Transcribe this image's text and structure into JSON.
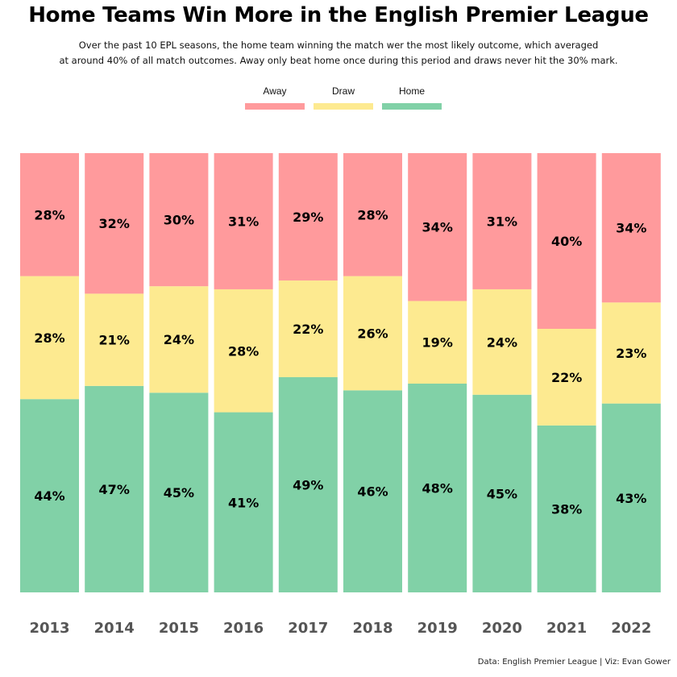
{
  "title": "Home Teams Win More in the English Premier League",
  "subtitle_line1": "Over the past 10 EPL seasons, the home team winning the match wer the most likely outcome, which averaged",
  "subtitle_line2": "at around 40% of all match outcomes. Away only beat home once during this period and draws never hit the 30% mark.",
  "caption": "Data: English Premier League | Viz: Evan Gower",
  "legend": [
    {
      "label": "Away",
      "color": "#ff9a9c"
    },
    {
      "label": "Draw",
      "color": "#fdea90"
    },
    {
      "label": "Home",
      "color": "#81d1a7"
    }
  ],
  "chart_data": {
    "type": "bar",
    "stacked": true,
    "normalized": true,
    "categories": [
      "2013",
      "2014",
      "2015",
      "2016",
      "2017",
      "2018",
      "2019",
      "2020",
      "2021",
      "2022"
    ],
    "series": [
      {
        "name": "Home",
        "color": "#81d1a7",
        "values": [
          44,
          47,
          45,
          41,
          49,
          46,
          48,
          45,
          38,
          43
        ]
      },
      {
        "name": "Draw",
        "color": "#fdea90",
        "values": [
          28,
          21,
          24,
          28,
          22,
          26,
          19,
          24,
          22,
          23
        ]
      },
      {
        "name": "Away",
        "color": "#ff9a9c",
        "values": [
          28,
          32,
          30,
          31,
          29,
          28,
          34,
          31,
          40,
          34
        ]
      }
    ],
    "value_suffix": "%",
    "legend_position": "top-center",
    "grid": false
  }
}
